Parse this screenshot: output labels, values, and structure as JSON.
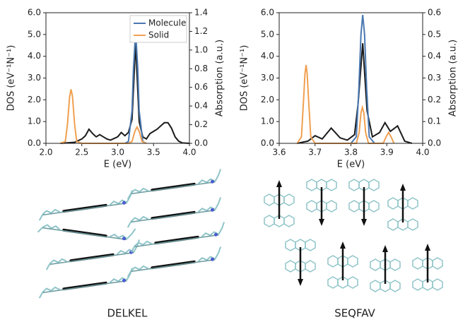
{
  "chart_data": [
    {
      "type": "line",
      "xlabel": "E (eV)",
      "ylabel": "DOS (eV⁻¹N⁻¹)",
      "y2label": "Absorption (a.u.)",
      "xlim": [
        2.0,
        4.0
      ],
      "xticks": [
        {
          "value": 2.0,
          "label": "2.0"
        },
        2.5,
        {
          "value": 3.0,
          "label": "3.0"
        },
        3.5,
        {
          "value": 4.0,
          "label": "4.0"
        }
      ],
      "ylim": [
        0,
        6.0
      ],
      "yticks": [
        {
          "value": 0,
          "label": "0.0"
        },
        {
          "value": 1,
          "label": "1.0"
        },
        {
          "value": 2,
          "label": "2.0"
        },
        {
          "value": 3,
          "label": "3.0"
        },
        {
          "value": 4,
          "label": "4.0"
        },
        {
          "value": 5,
          "label": "5.0"
        },
        {
          "value": 6,
          "label": "6.0"
        }
      ],
      "y2lim": [
        0,
        1.4
      ],
      "y2ticks": [
        {
          "value": 0,
          "label": "0.0"
        },
        0.2,
        0.4,
        0.6,
        0.8,
        {
          "value": 1,
          "label": "1.0"
        },
        1.2,
        1.4
      ],
      "legend": "upper right",
      "series": [
        {
          "color": "#1a1a1a",
          "x": [
            2.2,
            2.4,
            2.5,
            2.55,
            2.6,
            2.65,
            2.7,
            2.75,
            2.8,
            2.85,
            2.9,
            3.0,
            3.05,
            3.1,
            3.15,
            3.2,
            3.25,
            3.3,
            3.35,
            3.4,
            3.45,
            3.5,
            3.55,
            3.6,
            3.65,
            3.7,
            3.75,
            3.8,
            3.85,
            3.9,
            4.0
          ],
          "values": [
            0,
            0.05,
            0.2,
            0.35,
            0.65,
            0.45,
            0.3,
            0.4,
            0.3,
            0.2,
            0.15,
            0.3,
            0.5,
            0.35,
            0.5,
            1.1,
            4.6,
            1.0,
            0.3,
            0.2,
            0.45,
            0.55,
            0.65,
            0.8,
            0.95,
            0.95,
            0.7,
            0.3,
            0.1,
            0.02,
            0
          ]
        },
        {
          "name": "Molecule",
          "color": "#4a78b0",
          "axis": "y2",
          "x": [
            3.1,
            3.15,
            3.2,
            3.22,
            3.25,
            3.28,
            3.3,
            3.35,
            3.4
          ],
          "values": [
            0,
            0.02,
            0.35,
            0.8,
            1.2,
            0.8,
            0.35,
            0.02,
            0
          ]
        },
        {
          "name": "Solid",
          "color": "#f0a050",
          "axis": "y2",
          "x": [
            2.2,
            2.27,
            2.3,
            2.33,
            2.35,
            2.37,
            2.4,
            2.43,
            2.5,
            3.15,
            3.2,
            3.24,
            3.27,
            3.3,
            3.34,
            3.4
          ],
          "values": [
            0,
            0.02,
            0.2,
            0.5,
            0.58,
            0.5,
            0.2,
            0.02,
            0,
            0,
            0.02,
            0.13,
            0.175,
            0.13,
            0.02,
            0
          ]
        }
      ]
    },
    {
      "type": "line",
      "xlabel": "E (eV)",
      "ylabel": "DOS (eV⁻¹N⁻¹)",
      "y2label": "Absorption (a.u.)",
      "xlim": [
        3.6,
        4.0
      ],
      "xticks": [
        3.6,
        3.7,
        3.8,
        3.9,
        {
          "value": 4.0,
          "label": "4.0"
        }
      ],
      "ylim": [
        0,
        6.0
      ],
      "yticks": [
        {
          "value": 0,
          "label": "0.0"
        },
        {
          "value": 1,
          "label": "1.0"
        },
        {
          "value": 2,
          "label": "2.0"
        },
        {
          "value": 3,
          "label": "3.0"
        },
        {
          "value": 4,
          "label": "4.0"
        },
        {
          "value": 5,
          "label": "5.0"
        },
        {
          "value": 6,
          "label": "6.0"
        }
      ],
      "y2lim": [
        0,
        0.6
      ],
      "y2ticks": [
        {
          "value": 0,
          "label": "0.0"
        },
        0.1,
        0.2,
        0.3,
        0.4,
        0.5,
        0.6
      ],
      "series": [
        {
          "color": "#1a1a1a",
          "x": [
            3.65,
            3.68,
            3.7,
            3.72,
            3.745,
            3.77,
            3.79,
            3.81,
            3.82,
            3.833,
            3.845,
            3.86,
            3.88,
            3.895,
            3.91,
            3.93,
            3.95,
            3.97
          ],
          "values": [
            0,
            0.1,
            0.35,
            0.2,
            0.7,
            0.25,
            0.15,
            0.4,
            1.8,
            4.6,
            1.5,
            0.3,
            0.5,
            0.95,
            0.55,
            0.8,
            0.1,
            0
          ]
        },
        {
          "name": "Molecule",
          "color": "#4a78b0",
          "axis": "y2",
          "x": [
            3.8,
            3.815,
            3.822,
            3.828,
            3.833,
            3.838,
            3.844,
            3.851,
            3.866
          ],
          "values": [
            0,
            0.03,
            0.25,
            0.5,
            0.59,
            0.5,
            0.25,
            0.03,
            0
          ]
        },
        {
          "name": "Solid",
          "color": "#f0a050",
          "axis": "y2",
          "x": [
            3.65,
            3.662,
            3.668,
            3.672,
            3.675,
            3.678,
            3.682,
            3.688,
            3.7,
            3.815,
            3.823,
            3.828,
            3.832,
            3.836,
            3.841,
            3.849,
            3.89,
            3.898,
            3.905,
            3.912,
            3.92
          ],
          "values": [
            0,
            0.03,
            0.2,
            0.32,
            0.36,
            0.32,
            0.2,
            0.03,
            0,
            0,
            0.05,
            0.14,
            0.165,
            0.14,
            0.05,
            0,
            0,
            0.03,
            0.05,
            0.03,
            0
          ]
        }
      ]
    }
  ],
  "structures": [
    {
      "label": "DELKEL"
    },
    {
      "label": "SEQFAV"
    }
  ]
}
